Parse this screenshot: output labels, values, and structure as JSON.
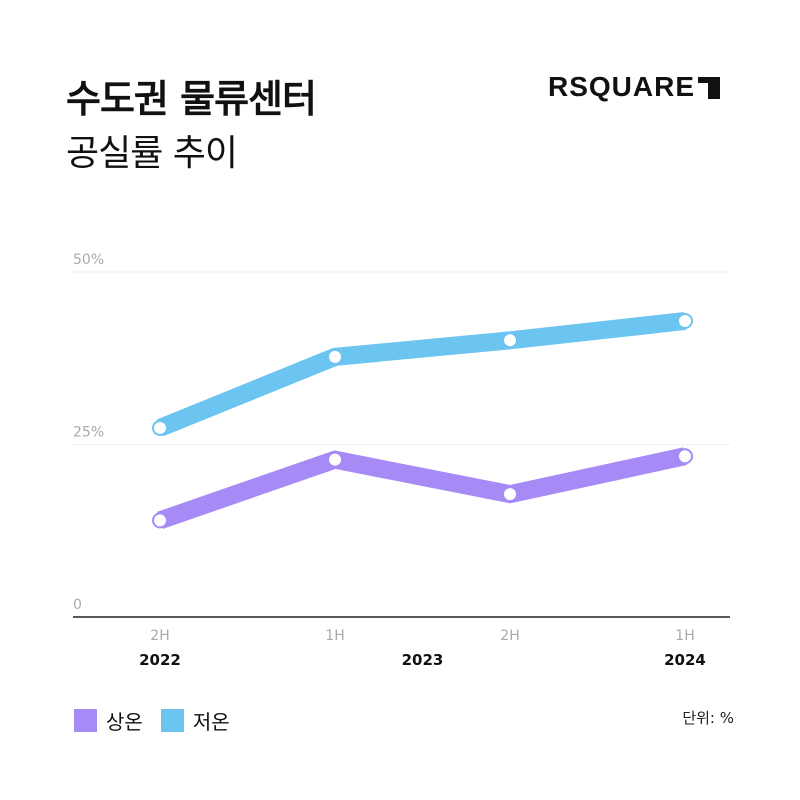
{
  "header": {
    "title": "수도권 물류센터",
    "subtitle": "공실률 추이",
    "brand": "RSQUARE"
  },
  "unit_note": "단위: %",
  "colors": {
    "upper": "#a68af5",
    "lower": "#6cc4f0",
    "grid": "#eeeeee",
    "axis": "#222222",
    "tick_label": "#aaaaaa"
  },
  "legend": [
    {
      "label": "상온",
      "color": "#a68af5"
    },
    {
      "label": "저온",
      "color": "#6cc4f0"
    }
  ],
  "chart_data": {
    "type": "line",
    "categories": [
      "2H",
      "1H",
      "2H",
      "1H"
    ],
    "years": [
      {
        "label": "2022",
        "index": 0
      },
      {
        "label": "2023",
        "index": 1.5
      },
      {
        "label": "2024",
        "index": 3
      }
    ],
    "y_ticks": [
      "0",
      "25%",
      "50%"
    ],
    "ylim": [
      0,
      50
    ],
    "grid": true,
    "legend_position": "bottom-left",
    "series": [
      {
        "name": "상온",
        "color": "#a68af5",
        "values": [
          14.0,
          22.8,
          17.8,
          23.3
        ]
      },
      {
        "name": "저온",
        "color": "#6cc4f0",
        "values": [
          27.4,
          37.7,
          40.1,
          42.9
        ]
      }
    ]
  }
}
